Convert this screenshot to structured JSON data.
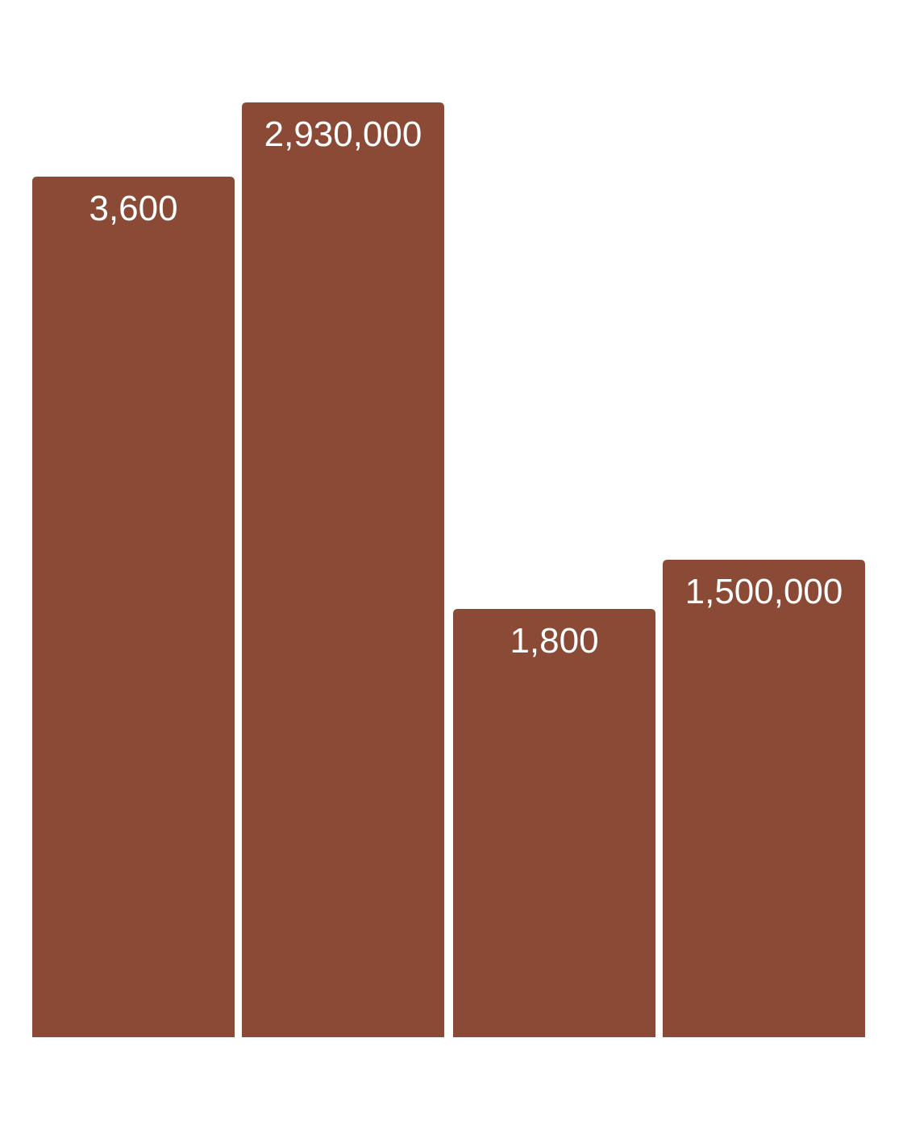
{
  "chart_data": {
    "type": "bar",
    "categories": [
      "",
      "",
      "",
      ""
    ],
    "series": [
      {
        "values": [
          3600,
          2930000,
          1800,
          1500000
        ],
        "labels": [
          "3,600",
          "2,930,000",
          "1,800",
          "1,500,000"
        ]
      }
    ],
    "title": "",
    "xlabel": "",
    "ylabel": "",
    "grid": false,
    "legend": "none",
    "bar_color": "#8B4A35",
    "label_color": "#ffffff"
  }
}
